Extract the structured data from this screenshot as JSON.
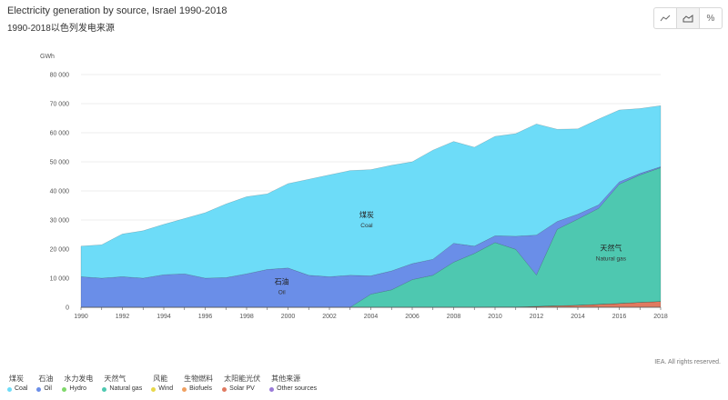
{
  "title": "Electricity generation by source, Israel 1990-2018",
  "subtitle": "1990-2018以色列发电来源",
  "toolbar": {
    "line_icon": "line-chart-icon",
    "area_icon": "area-chart-icon",
    "percent_label": "%"
  },
  "credit": "IEA. All rights reserved.",
  "chart_data": {
    "type": "area",
    "stacked": true,
    "title": "Electricity generation by source, Israel 1990-2018",
    "ylabel": "GWh",
    "xlabel": "",
    "ylim": [
      0,
      80000
    ],
    "yticks": [
      0,
      10000,
      20000,
      30000,
      40000,
      50000,
      60000,
      70000,
      80000
    ],
    "ytick_labels": [
      "0",
      "10 000",
      "20 000",
      "30 000",
      "40 000",
      "50 000",
      "60 000",
      "70 000",
      "80 000"
    ],
    "xticks": [
      1990,
      1992,
      1994,
      1996,
      1998,
      2000,
      2002,
      2004,
      2006,
      2008,
      2010,
      2012,
      2014,
      2016,
      2018
    ],
    "grid": true,
    "x": [
      1990,
      1991,
      1992,
      1993,
      1994,
      1995,
      1996,
      1997,
      1998,
      1999,
      2000,
      2001,
      2002,
      2003,
      2004,
      2005,
      2006,
      2007,
      2008,
      2009,
      2010,
      2011,
      2012,
      2013,
      2014,
      2015,
      2016,
      2017,
      2018
    ],
    "series": [
      {
        "name": "Solar PV",
        "color": "#e07a60",
        "values": [
          0,
          0,
          0,
          0,
          0,
          0,
          0,
          0,
          0,
          0,
          0,
          0,
          0,
          0,
          0,
          0,
          0,
          0,
          0,
          0,
          50,
          100,
          300,
          500,
          700,
          1000,
          1300,
          1700,
          2000
        ]
      },
      {
        "name": "Biofuels",
        "color": "#f0a060",
        "values": [
          0,
          0,
          0,
          0,
          0,
          0,
          0,
          0,
          0,
          0,
          0,
          0,
          0,
          0,
          0,
          0,
          0,
          0,
          0,
          0,
          0,
          0,
          0,
          0,
          0,
          0,
          0,
          0,
          0
        ]
      },
      {
        "name": "Natural gas",
        "color": "#4ec8b0",
        "values": [
          0,
          0,
          0,
          0,
          0,
          0,
          0,
          0,
          0,
          0,
          0,
          0,
          0,
          0,
          4500,
          6000,
          9500,
          11000,
          15500,
          18500,
          22200,
          19800,
          10800,
          26300,
          29600,
          33000,
          41000,
          43800,
          46000
        ]
      },
      {
        "name": "Oil",
        "color": "#6a8ee8",
        "values": [
          10500,
          10000,
          10500,
          10000,
          11200,
          11500,
          10000,
          10200,
          11500,
          13000,
          13500,
          11000,
          10500,
          11000,
          6300,
          6500,
          5500,
          5500,
          6500,
          2500,
          2300,
          4500,
          13700,
          2700,
          1700,
          1200,
          800,
          500,
          300
        ]
      },
      {
        "name": "Coal",
        "color": "#6ddcf8",
        "values": [
          10500,
          11500,
          14700,
          16300,
          17300,
          19000,
          22500,
          25300,
          26500,
          26000,
          29000,
          33000,
          35000,
          36000,
          36500,
          36300,
          35000,
          37500,
          35000,
          34000,
          34200,
          35300,
          38200,
          31700,
          29300,
          29500,
          24700,
          22300,
          21000
        ]
      }
    ],
    "annotations": [
      {
        "text": "煤炭",
        "sub": "Coal",
        "x": 2003.8,
        "y": 31000
      },
      {
        "text": "石油",
        "sub": "Oil",
        "x": 1999.7,
        "y": 8000
      },
      {
        "text": "天然气",
        "sub": "Natural gas",
        "x": 2015.6,
        "y": 19500
      }
    ]
  },
  "legend": [
    {
      "cn": "煤炭",
      "en": "Coal",
      "color": "#6ddcf8"
    },
    {
      "cn": "石油",
      "en": "Oil",
      "color": "#6a8ee8"
    },
    {
      "cn": "水力发电",
      "en": "Hydro",
      "color": "#7fd86a"
    },
    {
      "cn": "天然气",
      "en": "Natural gas",
      "color": "#4ec8b0"
    },
    {
      "cn": "风能",
      "en": "Wind",
      "color": "#e8d84a"
    },
    {
      "cn": "生物燃料",
      "en": "Biofuels",
      "color": "#f0a060"
    },
    {
      "cn": "太阳能光伏",
      "en": "Solar PV",
      "color": "#e07a60"
    },
    {
      "cn": "其他来源",
      "en": "Other sources",
      "color": "#9a7ad8"
    }
  ]
}
